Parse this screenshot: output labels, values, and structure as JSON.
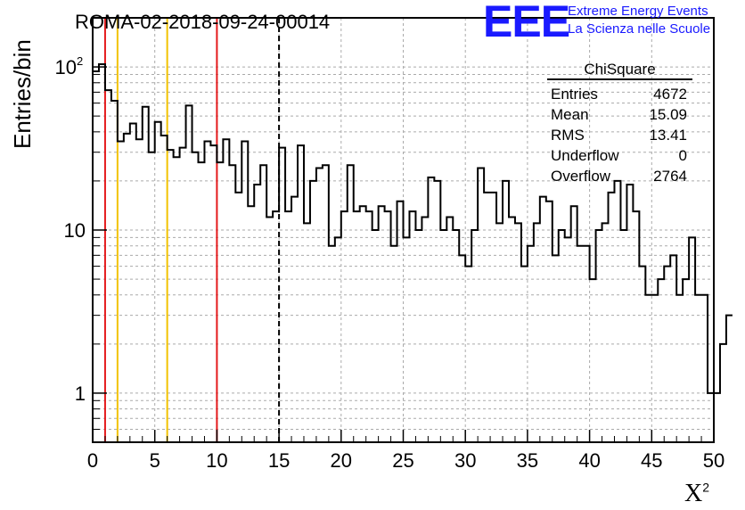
{
  "header": {
    "title": "ROMA-02-2018-09-24-00014",
    "logo_text": "EEE",
    "logo_line1": "Extreme Energy Events",
    "logo_line2": "La Scienza nelle Scuole"
  },
  "stats_box": {
    "title": "ChiSquare",
    "rows": [
      {
        "label": "Entries",
        "value": "4672"
      },
      {
        "label": "Mean",
        "value": "15.09"
      },
      {
        "label": "RMS",
        "value": "13.41"
      },
      {
        "label": "Underflow",
        "value": "0"
      },
      {
        "label": "Overflow",
        "value": "2764"
      }
    ]
  },
  "chart_data": {
    "type": "histogram",
    "title": "ROMA-02-2018-09-24-00014",
    "xlabel": "X",
    "xlabel_superscript": "2",
    "ylabel": "Entries/bin",
    "xlim": [
      0,
      50
    ],
    "ylim": [
      0.5,
      200
    ],
    "yscale": "log",
    "grid": true,
    "x_ticks": [
      "0",
      "5",
      "10",
      "15",
      "20",
      "25",
      "30",
      "35",
      "40",
      "45",
      "50"
    ],
    "y_ticks": [
      {
        "value": 1,
        "label": "1"
      },
      {
        "value": 10,
        "label": "10"
      },
      {
        "value": 100,
        "label": "10",
        "exponent": "2"
      }
    ],
    "bin_width": 0.5,
    "bin_start": 0,
    "values": [
      94,
      104,
      72,
      62,
      35,
      39,
      45,
      36,
      57,
      30,
      46,
      38,
      31,
      28,
      32,
      58,
      30,
      26,
      35,
      33,
      26,
      36,
      25,
      17,
      35,
      14,
      19,
      25,
      12,
      13,
      32,
      13,
      16,
      33,
      11,
      20,
      24,
      25,
      8,
      9,
      13,
      25,
      13,
      14,
      13,
      10,
      14,
      13,
      8,
      15,
      9,
      13,
      10,
      12,
      21,
      20,
      10,
      12,
      10,
      7,
      6,
      10,
      24,
      17,
      17,
      11,
      20,
      12,
      11,
      6,
      8,
      11,
      16,
      15,
      7,
      10,
      9,
      14,
      8,
      8,
      5,
      10,
      11,
      17,
      20,
      10,
      19,
      13,
      6,
      4,
      4,
      5,
      6,
      7,
      4,
      5,
      9,
      4,
      4,
      1,
      1,
      2,
      3
    ]
  },
  "reference_lines": [
    {
      "x": 1,
      "color": "#e41a1c",
      "style": "solid"
    },
    {
      "x": 2,
      "color": "#f2c200",
      "style": "solid"
    },
    {
      "x": 6,
      "color": "#f2c200",
      "style": "solid"
    },
    {
      "x": 10,
      "color": "#e41a1c",
      "style": "solid"
    },
    {
      "x": 15,
      "color": "#000000",
      "style": "dashed"
    }
  ]
}
